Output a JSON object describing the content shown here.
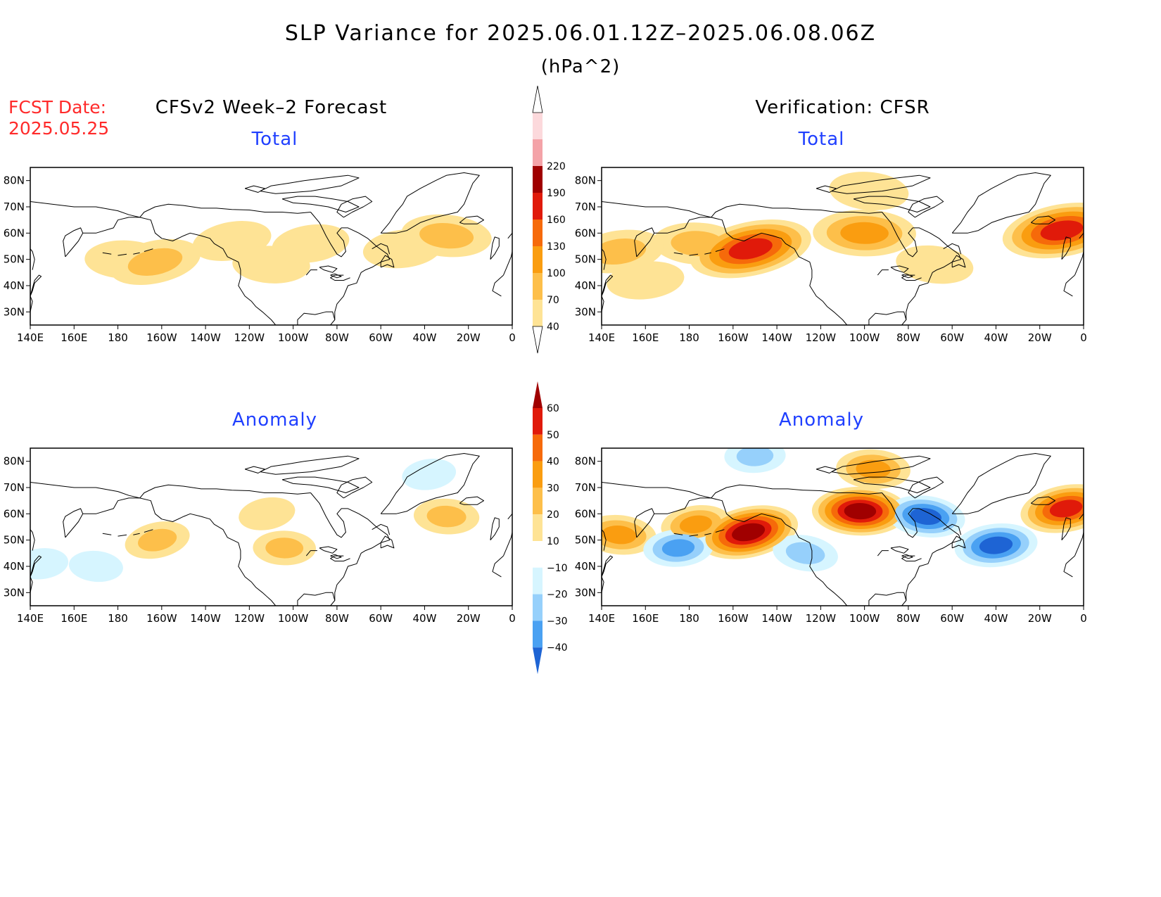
{
  "figure": {
    "title": "SLP Variance for 2025.06.01.12Z–2025.06.08.06Z",
    "units": "(hPa^2)",
    "fcst_label": "FCST Date:",
    "fcst_date": "2025.05.25",
    "left_column_title": "CFSv2 Week–2 Forecast",
    "right_column_title": "Verification: CFSR"
  },
  "panels": [
    {
      "id": "fcst-total",
      "subtitle": "Total"
    },
    {
      "id": "verif-total",
      "subtitle": "Total"
    },
    {
      "id": "fcst-anomaly",
      "subtitle": "Anomaly"
    },
    {
      "id": "verif-anomaly",
      "subtitle": "Anomaly"
    }
  ],
  "axes": {
    "lon_ticks": [
      "140E",
      "160E",
      "180",
      "160W",
      "140W",
      "120W",
      "100W",
      "80W",
      "60W",
      "40W",
      "20W",
      "0"
    ],
    "lat_ticks": [
      "80N",
      "70N",
      "60N",
      "50N",
      "40N",
      "30N"
    ],
    "lon_range_deg_east": [
      140,
      360
    ],
    "lat_range": [
      25,
      85
    ]
  },
  "colorbars": {
    "total": {
      "levels": [
        "40",
        "70",
        "100",
        "130",
        "160",
        "190",
        "220"
      ],
      "colors": [
        "#fee395",
        "#fdbf4a",
        "#fa9d10",
        "#f66a0a",
        "#e01a0a",
        "#a00000",
        "#f4a3a8",
        "#fcd9dc"
      ]
    },
    "anomaly": {
      "levels": [
        "60",
        "50",
        "40",
        "30",
        "20",
        "10",
        "−10",
        "−20",
        "−30",
        "−40"
      ],
      "colors": [
        "#a00000",
        "#e01a0a",
        "#f66a0a",
        "#fa9d10",
        "#fdbf4a",
        "#fee395",
        "#ffffff",
        "#d6f5ff",
        "#96d0fb",
        "#4aa1f2",
        "#1e64d4"
      ]
    }
  },
  "chart_data": [
    {
      "type": "heatmap",
      "title": "Total",
      "panel": "CFSv2 Week–2 Forecast",
      "units": "hPa^2",
      "note_values_estimated": true,
      "features": [
        {
          "lon": 197,
          "lat": 49,
          "value": 85
        },
        {
          "lon": 183,
          "lat": 50,
          "value": 50
        },
        {
          "lon": 232,
          "lat": 57,
          "value": 50
        },
        {
          "lon": 250,
          "lat": 48,
          "value": 45
        },
        {
          "lon": 268,
          "lat": 56,
          "value": 45
        },
        {
          "lon": 330,
          "lat": 59,
          "value": 80
        },
        {
          "lon": 310,
          "lat": 54,
          "value": 50
        }
      ]
    },
    {
      "type": "heatmap",
      "title": "Total",
      "panel": "Verification: CFSR",
      "units": "hPa^2",
      "note_values_estimated": true,
      "features": [
        {
          "lon": 208,
          "lat": 54,
          "value": 170
        },
        {
          "lon": 260,
          "lat": 60,
          "value": 115
        },
        {
          "lon": 350,
          "lat": 61,
          "value": 160
        },
        {
          "lon": 184,
          "lat": 56,
          "value": 80
        },
        {
          "lon": 148,
          "lat": 53,
          "value": 80
        },
        {
          "lon": 262,
          "lat": 76,
          "value": 50
        },
        {
          "lon": 160,
          "lat": 42,
          "value": 45
        },
        {
          "lon": 292,
          "lat": 48,
          "value": 45
        }
      ]
    },
    {
      "type": "heatmap",
      "title": "Anomaly",
      "panel": "CFSv2 Week–2 Forecast",
      "units": "hPa^2",
      "note_values_estimated": true,
      "features": [
        {
          "lon": 198,
          "lat": 50,
          "value": 25
        },
        {
          "lon": 256,
          "lat": 47,
          "value": 22
        },
        {
          "lon": 248,
          "lat": 60,
          "value": 15
        },
        {
          "lon": 330,
          "lat": 59,
          "value": 25
        },
        {
          "lon": 322,
          "lat": 75,
          "value": -12
        },
        {
          "lon": 170,
          "lat": 40,
          "value": -12
        },
        {
          "lon": 145,
          "lat": 41,
          "value": -12
        }
      ]
    },
    {
      "type": "heatmap",
      "title": "Anomaly",
      "panel": "Verification: CFSR",
      "units": "hPa^2",
      "note_values_estimated": true,
      "features": [
        {
          "lon": 207,
          "lat": 53,
          "value": 65
        },
        {
          "lon": 258,
          "lat": 61,
          "value": 60
        },
        {
          "lon": 352,
          "lat": 62,
          "value": 55
        },
        {
          "lon": 264,
          "lat": 77,
          "value": 35
        },
        {
          "lon": 183,
          "lat": 56,
          "value": 30
        },
        {
          "lon": 148,
          "lat": 52,
          "value": 35
        },
        {
          "lon": 320,
          "lat": 48,
          "value": -45
        },
        {
          "lon": 288,
          "lat": 59,
          "value": -40
        },
        {
          "lon": 175,
          "lat": 47,
          "value": -30
        },
        {
          "lon": 233,
          "lat": 45,
          "value": -25
        },
        {
          "lon": 210,
          "lat": 82,
          "value": -20
        }
      ]
    }
  ]
}
